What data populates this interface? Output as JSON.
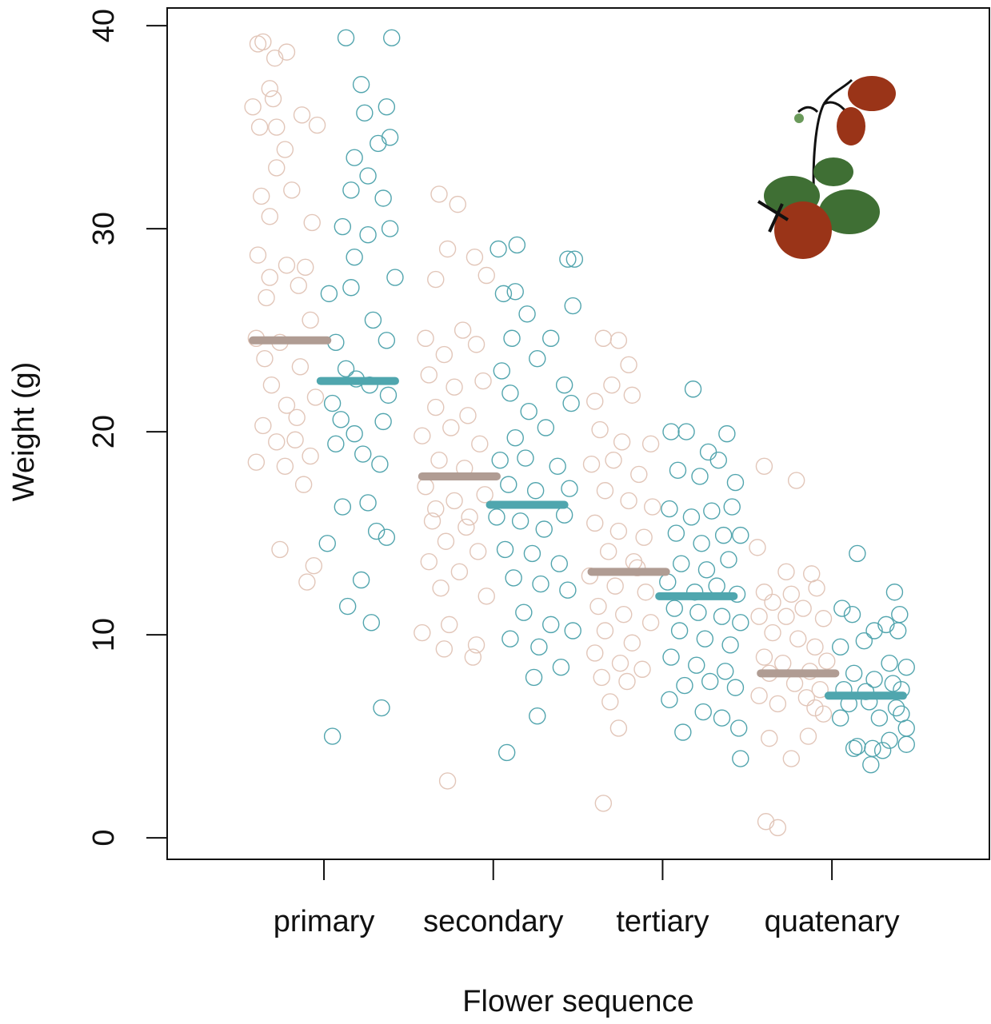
{
  "chart_data": {
    "type": "strip",
    "xlabel": "Flower sequence",
    "ylabel": "Weight (g)",
    "xlim": [
      0.074,
      4.93
    ],
    "ylim": [
      -1.06,
      40.87
    ],
    "xticks": [
      {
        "value": 1,
        "label": "primary"
      },
      {
        "value": 2,
        "label": "secondary"
      },
      {
        "value": 3,
        "label": "tertiary"
      },
      {
        "value": 4,
        "label": "quatenary"
      }
    ],
    "yticks": [
      0,
      10,
      20,
      30,
      40
    ],
    "series": [
      {
        "color": "#e2c6b9",
        "x": [
          0.61,
          0.64,
          0.71,
          0.78,
          0.58,
          0.68,
          0.7,
          0.62,
          0.72,
          0.87,
          0.96,
          0.77,
          0.72,
          0.63,
          0.81,
          0.68,
          0.93,
          0.61,
          0.78,
          0.89,
          0.85,
          0.66,
          0.92,
          0.6,
          0.74,
          0.65,
          0.86,
          0.69,
          0.78,
          0.95,
          0.64,
          0.84,
          0.72,
          0.6,
          0.77,
          0.88,
          0.92,
          0.74,
          0.94,
          0.9,
          0.83,
          0.68,
          1.68,
          1.79,
          1.73,
          1.89,
          1.66,
          1.96,
          1.6,
          1.82,
          1.71,
          1.9,
          1.62,
          1.77,
          1.94,
          1.66,
          1.85,
          1.58,
          1.75,
          1.92,
          1.68,
          1.83,
          1.6,
          1.77,
          1.95,
          1.64,
          1.84,
          1.72,
          1.91,
          1.62,
          1.8,
          1.69,
          1.96,
          1.74,
          1.9,
          1.58,
          1.71,
          1.88,
          1.73,
          1.86,
          1.66,
          2.65,
          2.74,
          2.8,
          2.6,
          2.7,
          2.82,
          2.63,
          2.76,
          2.93,
          2.58,
          2.71,
          2.86,
          2.66,
          2.8,
          2.94,
          2.6,
          2.74,
          2.89,
          2.68,
          2.83,
          2.57,
          2.72,
          2.9,
          2.62,
          2.77,
          2.93,
          2.66,
          2.82,
          2.6,
          2.75,
          2.88,
          2.64,
          2.79,
          2.69,
          2.74,
          2.65,
          2.85,
          3.6,
          3.79,
          3.56,
          3.73,
          3.88,
          3.6,
          3.76,
          3.91,
          3.65,
          3.83,
          3.57,
          3.73,
          3.95,
          3.65,
          3.8,
          3.9,
          3.6,
          3.71,
          3.87,
          3.97,
          3.63,
          3.78,
          3.93,
          3.57,
          3.68,
          3.85,
          3.95,
          3.63,
          3.76,
          3.86,
          3.61,
          3.68,
          3.9
        ],
        "values": [
          39.1,
          39.2,
          38.4,
          38.7,
          36,
          36.9,
          36.4,
          35,
          35,
          35.6,
          35.1,
          33.9,
          33,
          31.6,
          31.9,
          30.6,
          30.3,
          28.7,
          28.2,
          28.1,
          27.2,
          26.6,
          25.5,
          24.6,
          24.4,
          23.6,
          23.2,
          22.3,
          21.3,
          21.7,
          20.3,
          20.7,
          19.5,
          18.5,
          18.3,
          17.4,
          18.8,
          14.2,
          13.4,
          12.6,
          19.6,
          27.6,
          31.7,
          31.2,
          29,
          28.6,
          27.5,
          27.7,
          24.6,
          25,
          23.8,
          24.3,
          22.8,
          22.2,
          22.5,
          21.2,
          20.8,
          19.8,
          20.2,
          19.4,
          18.6,
          18.2,
          17.3,
          16.6,
          16.9,
          15.6,
          15.3,
          14.6,
          14.1,
          13.6,
          13.1,
          12.3,
          11.9,
          10.5,
          9.5,
          10.1,
          9.3,
          8.9,
          2.8,
          15.8,
          16.2,
          24.6,
          24.5,
          23.3,
          21.5,
          22.3,
          21.8,
          20.1,
          19.5,
          19.4,
          18.4,
          18.6,
          17.9,
          17.1,
          16.6,
          16.3,
          15.5,
          15.1,
          14.8,
          14.1,
          13.6,
          12.9,
          12.4,
          12.1,
          11.4,
          11,
          10.6,
          10.2,
          9.6,
          9.1,
          8.6,
          8.3,
          7.9,
          7.7,
          6.7,
          5.4,
          1.7,
          13.3,
          18.3,
          17.6,
          14.3,
          13.1,
          13,
          12.1,
          12,
          12.3,
          11.6,
          11.3,
          10.9,
          10.9,
          10.8,
          10.1,
          9.8,
          9.4,
          8.9,
          8.6,
          8.2,
          8.7,
          8.1,
          7.6,
          7.3,
          7,
          6.6,
          6.9,
          6.1,
          4.9,
          3.9,
          5,
          0.8,
          0.5,
          6.4
        ]
      },
      {
        "color": "#52a5ae",
        "x": [
          1.13,
          1.4,
          1.22,
          1.37,
          1.24,
          1.32,
          1.39,
          1.18,
          1.26,
          1.16,
          1.35,
          1.11,
          1.26,
          1.39,
          1.18,
          1.42,
          1.03,
          1.16,
          1.29,
          1.07,
          1.37,
          1.13,
          1.27,
          1.05,
          1.19,
          1.38,
          1.1,
          1.35,
          1.18,
          1.07,
          1.23,
          1.33,
          1.11,
          1.26,
          1.02,
          1.37,
          1.22,
          1.14,
          1.28,
          1.34,
          1.05,
          1.31,
          2.03,
          2.14,
          2.44,
          2.48,
          2.06,
          2.13,
          2.2,
          2.47,
          2.11,
          2.34,
          2.05,
          2.26,
          2.42,
          2.1,
          2.21,
          2.46,
          2.13,
          2.31,
          2.04,
          2.19,
          2.38,
          2.09,
          2.25,
          2.45,
          2.02,
          2.16,
          2.3,
          2.42,
          2.07,
          2.23,
          2.39,
          2.12,
          2.28,
          2.44,
          2.18,
          2.34,
          2.47,
          2.1,
          2.27,
          2.4,
          2.24,
          2.26,
          2.08,
          3.18,
          3.05,
          3.14,
          3.27,
          3.38,
          3.09,
          3.22,
          3.33,
          3.43,
          3.04,
          3.17,
          3.29,
          3.41,
          3.08,
          3.23,
          3.36,
          3.46,
          3.11,
          3.26,
          3.39,
          3.03,
          3.19,
          3.32,
          3.44,
          3.07,
          3.21,
          3.35,
          3.46,
          3.1,
          3.25,
          3.4,
          3.05,
          3.2,
          3.37,
          3.13,
          3.28,
          3.43,
          3.04,
          3.24,
          3.35,
          3.12,
          3.45,
          3.46,
          4.15,
          4.37,
          4.06,
          4.12,
          4.32,
          4.4,
          4.25,
          4.39,
          4.19,
          4.05,
          4.34,
          4.44,
          4.13,
          4.25,
          4.36,
          4.07,
          4.2,
          4.41,
          4.1,
          4.22,
          4.38,
          4.05,
          4.28,
          4.44,
          4.15,
          4.24,
          4.34,
          4.44,
          4.13,
          4.3,
          4.23,
          4.41
        ],
        "values": [
          39.4,
          39.4,
          37.1,
          36,
          35.7,
          34.2,
          34.5,
          33.5,
          32.6,
          31.9,
          31.5,
          30.1,
          29.7,
          30,
          28.6,
          27.6,
          26.8,
          27.1,
          25.5,
          24.4,
          24.5,
          23.1,
          22.3,
          21.4,
          22.6,
          21.8,
          20.6,
          20.5,
          19.9,
          19.4,
          18.9,
          18.4,
          16.3,
          16.5,
          14.5,
          14.8,
          12.7,
          11.4,
          10.6,
          6.4,
          5,
          15.1,
          29,
          29.2,
          28.5,
          28.5,
          26.8,
          26.9,
          25.8,
          26.2,
          24.6,
          24.6,
          23,
          23.6,
          22.3,
          21.9,
          21,
          21.4,
          19.7,
          20.2,
          18.6,
          18.7,
          18.3,
          17.4,
          17.1,
          17.2,
          15.8,
          15.6,
          15.2,
          15.9,
          14.2,
          14,
          13.5,
          12.8,
          12.5,
          12.2,
          11.1,
          10.5,
          10.2,
          9.8,
          9.4,
          8.4,
          7.9,
          6,
          4.2,
          22.1,
          20,
          20,
          19,
          19.9,
          18.1,
          17.8,
          18.6,
          17.5,
          16.2,
          15.8,
          16.1,
          16.3,
          15,
          14.5,
          14.9,
          14.9,
          13.5,
          13.2,
          13.7,
          12.6,
          12.1,
          12.4,
          12,
          11.3,
          11.1,
          10.9,
          10.6,
          10.2,
          9.8,
          9.5,
          8.9,
          8.5,
          8.2,
          7.5,
          7.7,
          7.4,
          6.8,
          6.2,
          5.9,
          5.2,
          5.4,
          3.9,
          14,
          12.1,
          11.3,
          11,
          10.5,
          11,
          10.2,
          10.2,
          9.7,
          9.4,
          8.6,
          8.4,
          8.1,
          7.8,
          7.6,
          7.3,
          7.2,
          7.3,
          6.6,
          6.7,
          6.4,
          5.9,
          5.9,
          5.4,
          4.5,
          4.4,
          4.8,
          4.6,
          4.4,
          4.3,
          3.6,
          6.1
        ]
      }
    ],
    "means": [
      {
        "color": "#b09c93",
        "values": [
          24.5,
          17.8,
          13.1,
          8.1
        ]
      },
      {
        "color": "#4fa6ae",
        "values": [
          22.5,
          16.4,
          11.9,
          7.0
        ]
      }
    ]
  }
}
